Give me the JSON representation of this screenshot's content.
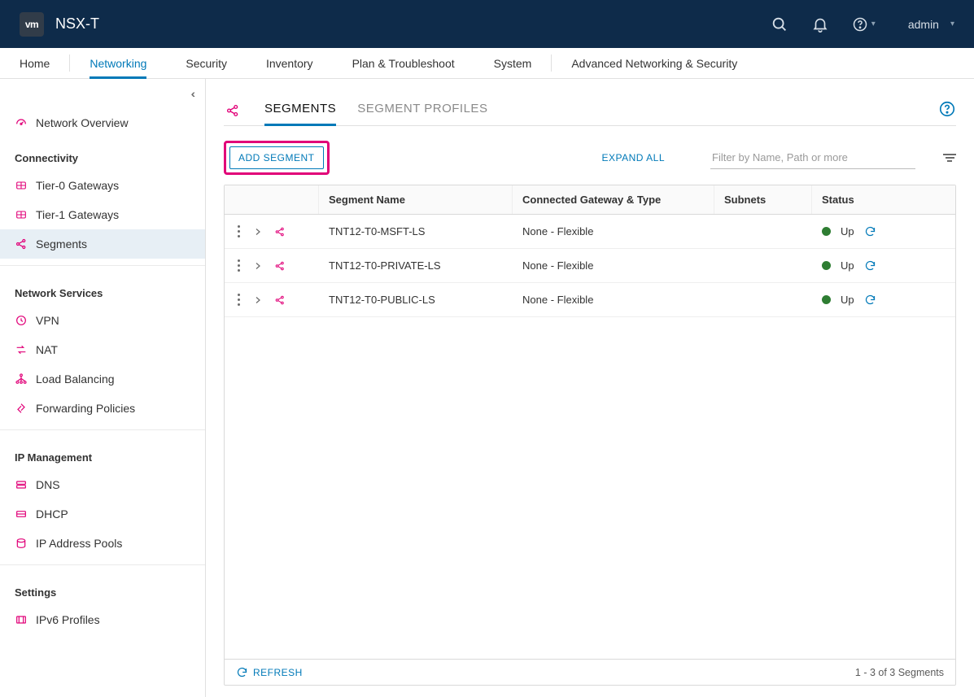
{
  "topbar": {
    "logo_text": "vm",
    "product": "NSX-T",
    "user": "admin"
  },
  "nav_tabs": [
    {
      "label": "Home",
      "active": false
    },
    {
      "label": "Networking",
      "active": true
    },
    {
      "label": "Security",
      "active": false
    },
    {
      "label": "Inventory",
      "active": false
    },
    {
      "label": "Plan & Troubleshoot",
      "active": false
    },
    {
      "label": "System",
      "active": false
    },
    {
      "label": "Advanced Networking & Security",
      "active": false
    }
  ],
  "sidebar": {
    "overview_label": "Network Overview",
    "groups": [
      {
        "title": "Connectivity",
        "items": [
          {
            "label": "Tier-0 Gateways",
            "icon": "tier",
            "active": false
          },
          {
            "label": "Tier-1 Gateways",
            "icon": "tier",
            "active": false
          },
          {
            "label": "Segments",
            "icon": "share",
            "active": true
          }
        ]
      },
      {
        "title": "Network Services",
        "items": [
          {
            "label": "VPN",
            "icon": "vpn"
          },
          {
            "label": "NAT",
            "icon": "nat"
          },
          {
            "label": "Load Balancing",
            "icon": "lb"
          },
          {
            "label": "Forwarding Policies",
            "icon": "fwd"
          }
        ]
      },
      {
        "title": "IP Management",
        "items": [
          {
            "label": "DNS",
            "icon": "dns"
          },
          {
            "label": "DHCP",
            "icon": "dhcp"
          },
          {
            "label": "IP Address Pools",
            "icon": "ip"
          }
        ]
      },
      {
        "title": "Settings",
        "items": [
          {
            "label": "IPv6 Profiles",
            "icon": "ipv6"
          }
        ]
      }
    ]
  },
  "main": {
    "tabs": [
      {
        "label": "SEGMENTS",
        "active": true
      },
      {
        "label": "SEGMENT PROFILES",
        "active": false
      }
    ],
    "add_button": "ADD SEGMENT",
    "expand_all": "EXPAND ALL",
    "filter_placeholder": "Filter by Name, Path or more",
    "columns": {
      "name": "Segment Name",
      "gateway": "Connected Gateway & Type",
      "subnets": "Subnets",
      "status": "Status"
    },
    "rows": [
      {
        "name": "TNT12-T0-MSFT-LS",
        "gateway": "None - Flexible",
        "subnets": "",
        "status_text": "Up",
        "status_color": "#2e7d32"
      },
      {
        "name": "TNT12-T0-PRIVATE-LS",
        "gateway": "None - Flexible",
        "subnets": "",
        "status_text": "Up",
        "status_color": "#2e7d32"
      },
      {
        "name": "TNT12-T0-PUBLIC-LS",
        "gateway": "None - Flexible",
        "subnets": "",
        "status_text": "Up",
        "status_color": "#2e7d32"
      }
    ],
    "refresh_label": "REFRESH",
    "footer_count": "1 - 3 of 3 Segments"
  },
  "colors": {
    "topbar_bg": "#0e2b4a",
    "accent_pink": "#e10078",
    "accent_blue": "#0079b8",
    "status_green": "#2e7d32",
    "border": "#d9d9d9"
  }
}
